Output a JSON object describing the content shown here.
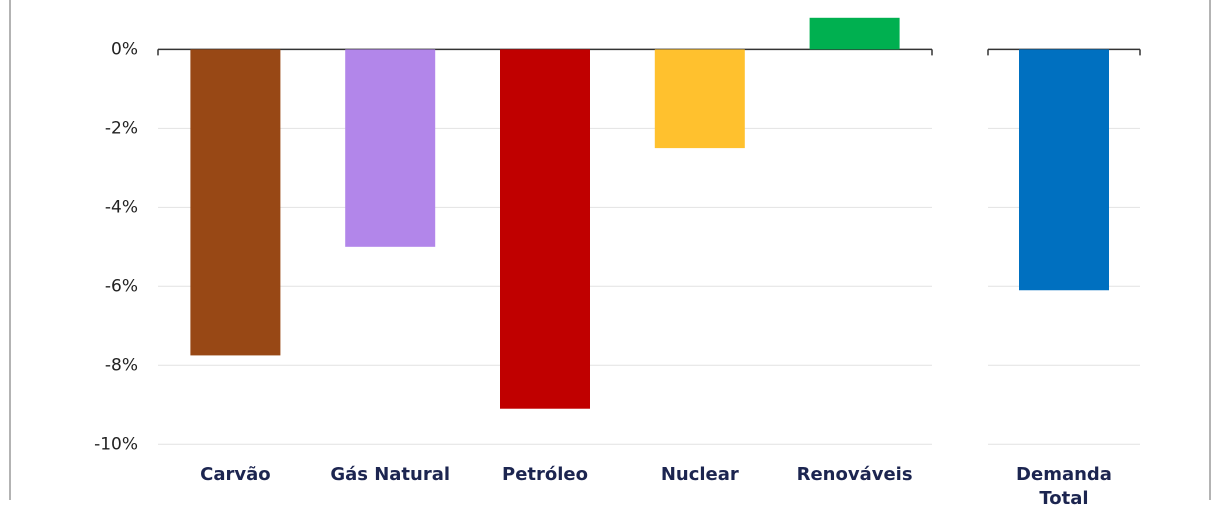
{
  "chart_data": {
    "type": "bar",
    "categories": [
      "Carvão",
      "Gás Natural",
      "Petróleo",
      "Nuclear",
      "Renováveis",
      "Demanda Total"
    ],
    "values": [
      -7.75,
      -5.0,
      -9.1,
      -2.5,
      0.8,
      -6.1
    ],
    "colors": [
      "#984815",
      "#b286ea",
      "#c00000",
      "#ffc12e",
      "#00b050",
      "#0070c0"
    ],
    "ylim": [
      -10.5,
      1.2
    ],
    "yticks": [
      {
        "value": 0,
        "label": "0%"
      },
      {
        "value": -2,
        "label": "-2%"
      },
      {
        "value": -4,
        "label": "-4%"
      },
      {
        "value": -6,
        "label": "-6%"
      },
      {
        "value": -8,
        "label": "-8%"
      },
      {
        "value": -10,
        "label": "-10%"
      }
    ],
    "grid": true
  }
}
